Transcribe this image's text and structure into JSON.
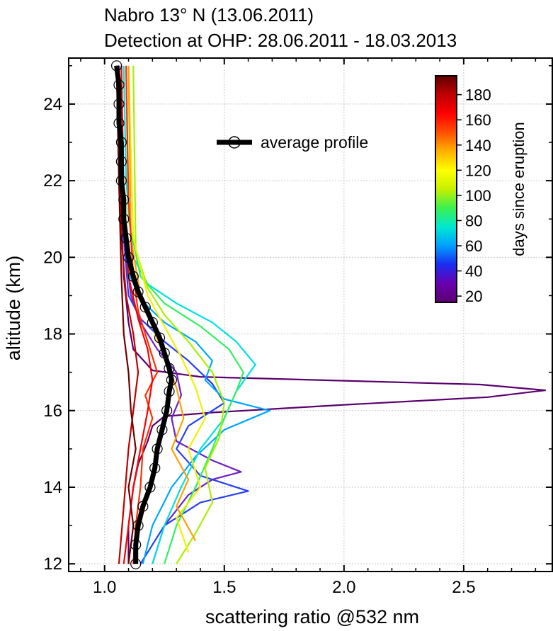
{
  "chart_data": {
    "type": "line",
    "title_lines": [
      "Nabro 13° N (13.06.2011)",
      "Detection at OHP:  28.06.2011 - 18.03.2013"
    ],
    "xlabel": "scattering ratio @532 nm",
    "ylabel": "altitude (km)",
    "xlim": [
      0.85,
      2.87
    ],
    "ylim": [
      11.8,
      25.2
    ],
    "xticks": [
      1.0,
      1.5,
      2.0,
      2.5
    ],
    "xtick_labels": [
      "1.0",
      "1.5",
      "2.0",
      "2.5"
    ],
    "yticks": [
      12,
      14,
      16,
      18,
      20,
      22,
      24
    ],
    "ytick_labels": [
      "12",
      "14",
      "16",
      "18",
      "20",
      "22",
      "24"
    ],
    "grid": true,
    "legend": {
      "placement": "top-center",
      "entries": [
        "average profile"
      ]
    },
    "colorbar": {
      "title": "days since eruption",
      "range": [
        15,
        195
      ],
      "ticks": [
        20,
        40,
        60,
        80,
        100,
        120,
        140,
        160,
        180
      ],
      "tick_labels": [
        "20",
        "40",
        "60",
        "80",
        "100",
        "120",
        "140",
        "160",
        "180"
      ],
      "colormap": [
        "#5a006e",
        "#6a00b0",
        "#1a2cf0",
        "#00a0ff",
        "#00e8d0",
        "#3cf050",
        "#c8f000",
        "#ffff00",
        "#ffb000",
        "#ff5000",
        "#ff0000",
        "#c00000",
        "#600000"
      ]
    },
    "series": [
      {
        "name": "average profile",
        "color": "#000000",
        "x": [
          1.13,
          1.13,
          1.14,
          1.16,
          1.19,
          1.21,
          1.22,
          1.24,
          1.26,
          1.27,
          1.28,
          1.27,
          1.25,
          1.23,
          1.2,
          1.17,
          1.14,
          1.12,
          1.1,
          1.09,
          1.08,
          1.08,
          1.07,
          1.07,
          1.07,
          1.06,
          1.06,
          1.06,
          1.05
        ],
        "y": [
          12.0,
          12.5,
          13.0,
          13.5,
          14.0,
          14.5,
          15.0,
          15.5,
          16.0,
          16.5,
          16.8,
          17.1,
          17.5,
          17.9,
          18.3,
          18.7,
          19.1,
          19.5,
          20.0,
          20.5,
          21.0,
          21.5,
          22.0,
          22.5,
          23.0,
          23.5,
          24.0,
          24.5,
          25.0
        ]
      },
      {
        "name": "day 20",
        "day": 20,
        "color": "#5a006e",
        "x": [
          1.1,
          1.1,
          1.12,
          1.14,
          1.18,
          1.2,
          1.25,
          1.45,
          2.0,
          2.6,
          2.84,
          2.57,
          2.0,
          1.4,
          1.2,
          1.12,
          1.1,
          1.08,
          1.07,
          1.06,
          1.06,
          1.05
        ],
        "y": [
          12.0,
          13.0,
          14.0,
          14.6,
          15.2,
          15.6,
          15.85,
          15.95,
          16.15,
          16.35,
          16.53,
          16.68,
          16.78,
          16.88,
          17.05,
          17.6,
          18.3,
          19.5,
          21.0,
          22.5,
          24.0,
          25.0
        ]
      },
      {
        "name": "day 35",
        "day": 35,
        "color": "#7020c8",
        "x": [
          1.2,
          1.25,
          1.35,
          1.45,
          1.57,
          1.45,
          1.3,
          1.28,
          1.32,
          1.3,
          1.22,
          1.15,
          1.11,
          1.08,
          1.07,
          1.06
        ],
        "y": [
          12.0,
          13.0,
          13.8,
          14.2,
          14.4,
          14.7,
          15.2,
          15.8,
          16.4,
          17.0,
          17.6,
          18.3,
          19.0,
          20.5,
          22.5,
          25.0
        ]
      },
      {
        "name": "day 45",
        "day": 45,
        "color": "#2840f0",
        "x": [
          1.15,
          1.25,
          1.4,
          1.6,
          1.4,
          1.3,
          1.35,
          1.5,
          1.45,
          1.35,
          1.25,
          1.15,
          1.1,
          1.08,
          1.07,
          1.06
        ],
        "y": [
          12.0,
          13.0,
          13.6,
          13.9,
          14.3,
          15.0,
          15.6,
          16.2,
          16.7,
          17.3,
          17.8,
          18.4,
          19.0,
          20.5,
          22.5,
          25.0
        ]
      },
      {
        "name": "day 60",
        "day": 60,
        "color": "#00a8ff",
        "x": [
          1.16,
          1.2,
          1.28,
          1.38,
          1.5,
          1.69,
          1.5,
          1.42,
          1.45,
          1.38,
          1.25,
          1.15,
          1.1,
          1.08,
          1.07
        ],
        "y": [
          12.0,
          13.0,
          14.0,
          14.8,
          15.5,
          16.0,
          16.3,
          16.8,
          17.3,
          17.8,
          18.3,
          18.9,
          19.6,
          21.5,
          25.0
        ]
      },
      {
        "name": "day 70",
        "day": 70,
        "color": "#00e0e0",
        "x": [
          1.2,
          1.25,
          1.32,
          1.4,
          1.5,
          1.55,
          1.63,
          1.55,
          1.45,
          1.3,
          1.18,
          1.12,
          1.09,
          1.08
        ],
        "y": [
          12.0,
          13.0,
          14.0,
          15.0,
          15.8,
          16.5,
          17.2,
          17.8,
          18.3,
          18.8,
          19.3,
          20.0,
          22.0,
          25.0
        ]
      },
      {
        "name": "day 80",
        "day": 80,
        "color": "#30f060",
        "x": [
          1.25,
          1.3,
          1.38,
          1.45,
          1.5,
          1.55,
          1.58,
          1.52,
          1.4,
          1.25,
          1.15,
          1.1,
          1.09
        ],
        "y": [
          12.0,
          13.0,
          14.0,
          15.0,
          15.8,
          16.5,
          17.0,
          17.6,
          18.2,
          18.8,
          19.5,
          21.0,
          25.0
        ]
      },
      {
        "name": "day 90",
        "day": 90,
        "color": "#a8f000",
        "x": [
          1.3,
          1.38,
          1.45,
          1.42,
          1.48,
          1.5,
          1.45,
          1.35,
          1.25,
          1.18,
          1.13,
          1.12
        ],
        "y": [
          12.0,
          12.8,
          13.6,
          14.5,
          15.3,
          16.2,
          17.0,
          17.8,
          18.5,
          19.2,
          20.2,
          25.0
        ]
      },
      {
        "name": "day 105",
        "day": 105,
        "color": "#f0f000",
        "x": [
          1.35,
          1.3,
          1.4,
          1.35,
          1.42,
          1.38,
          1.32,
          1.25,
          1.18,
          1.12,
          1.1
        ],
        "y": [
          12.3,
          13.2,
          14.0,
          15.0,
          15.8,
          16.6,
          17.4,
          18.2,
          19.0,
          20.5,
          25.0
        ]
      },
      {
        "name": "day 125",
        "day": 125,
        "color": "#ffa000",
        "x": [
          1.38,
          1.3,
          1.35,
          1.28,
          1.33,
          1.3,
          1.25,
          1.2,
          1.15,
          1.11,
          1.1
        ],
        "y": [
          12.6,
          13.5,
          14.2,
          15.0,
          15.8,
          16.6,
          17.4,
          18.2,
          19.0,
          20.5,
          25.0
        ]
      },
      {
        "name": "day 140",
        "day": 140,
        "color": "#ff3000",
        "x": [
          1.12,
          1.13,
          1.15,
          1.16,
          1.2,
          1.17,
          1.22,
          1.18,
          1.14,
          1.12,
          1.1,
          1.09
        ],
        "y": [
          12.0,
          13.0,
          14.0,
          15.0,
          15.8,
          16.4,
          17.0,
          17.8,
          18.6,
          19.5,
          21.5,
          25.0
        ]
      },
      {
        "name": "day 150",
        "day": 150,
        "color": "#ff0000",
        "x": [
          1.08,
          1.1,
          1.12,
          1.15,
          1.18,
          1.2,
          1.18,
          1.14,
          1.1,
          1.08,
          1.07
        ],
        "y": [
          12.0,
          13.0,
          14.0,
          15.0,
          16.0,
          16.8,
          17.6,
          18.4,
          19.5,
          21.5,
          25.0
        ]
      },
      {
        "name": "day 165",
        "day": 165,
        "color": "#c00000",
        "x": [
          1.06,
          1.08,
          1.1,
          1.12,
          1.14,
          1.12,
          1.09,
          1.07,
          1.06,
          1.05
        ],
        "y": [
          12.0,
          13.5,
          15.0,
          16.0,
          17.0,
          18.0,
          19.0,
          20.5,
          22.5,
          25.0
        ]
      },
      {
        "name": "day 185",
        "day": 185,
        "color": "#700000",
        "x": [
          1.1,
          1.12,
          1.1,
          1.13,
          1.11,
          1.1,
          1.08,
          1.07,
          1.06,
          1.05
        ],
        "y": [
          12.0,
          13.0,
          14.0,
          15.0,
          16.0,
          17.0,
          18.0,
          19.5,
          22.0,
          25.0
        ]
      }
    ]
  }
}
